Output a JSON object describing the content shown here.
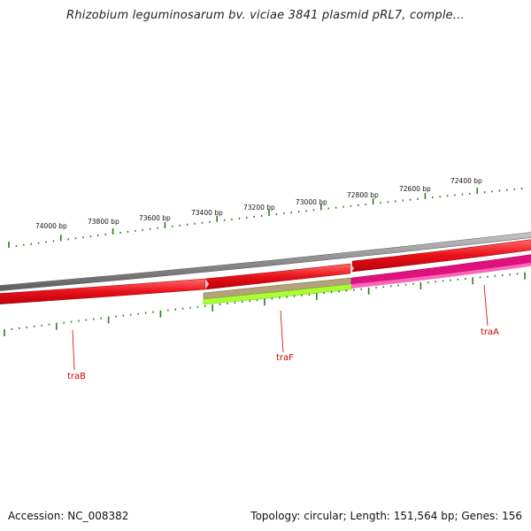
{
  "title": "Rhizobium leguminosarum bv. viciae 3841 plasmid pRL7, comple...",
  "footer": {
    "accession": "Accession: NC_008382",
    "summary": "Topology: circular; Length: 151,564 bp; Genes: 156"
  },
  "ruler": {
    "labels": [
      "74000 bp",
      "73800 bp",
      "73600 bp",
      "73400 bp",
      "73200 bp",
      "73000 bp",
      "72800 bp",
      "72600 bp",
      "72400 bp"
    ]
  },
  "genes": [
    {
      "name": "traB",
      "color": "#e8101a"
    },
    {
      "name": "traF",
      "color": "#b3a27a"
    },
    {
      "name": "traA",
      "color": "#e0117f"
    }
  ],
  "colors": {
    "backbone": "#8c8c8c",
    "tick": "#2e7d1e",
    "forward_gene": "#e8101a",
    "lime_strip": "#aaff33",
    "pink_strip": "#ff66bb"
  }
}
